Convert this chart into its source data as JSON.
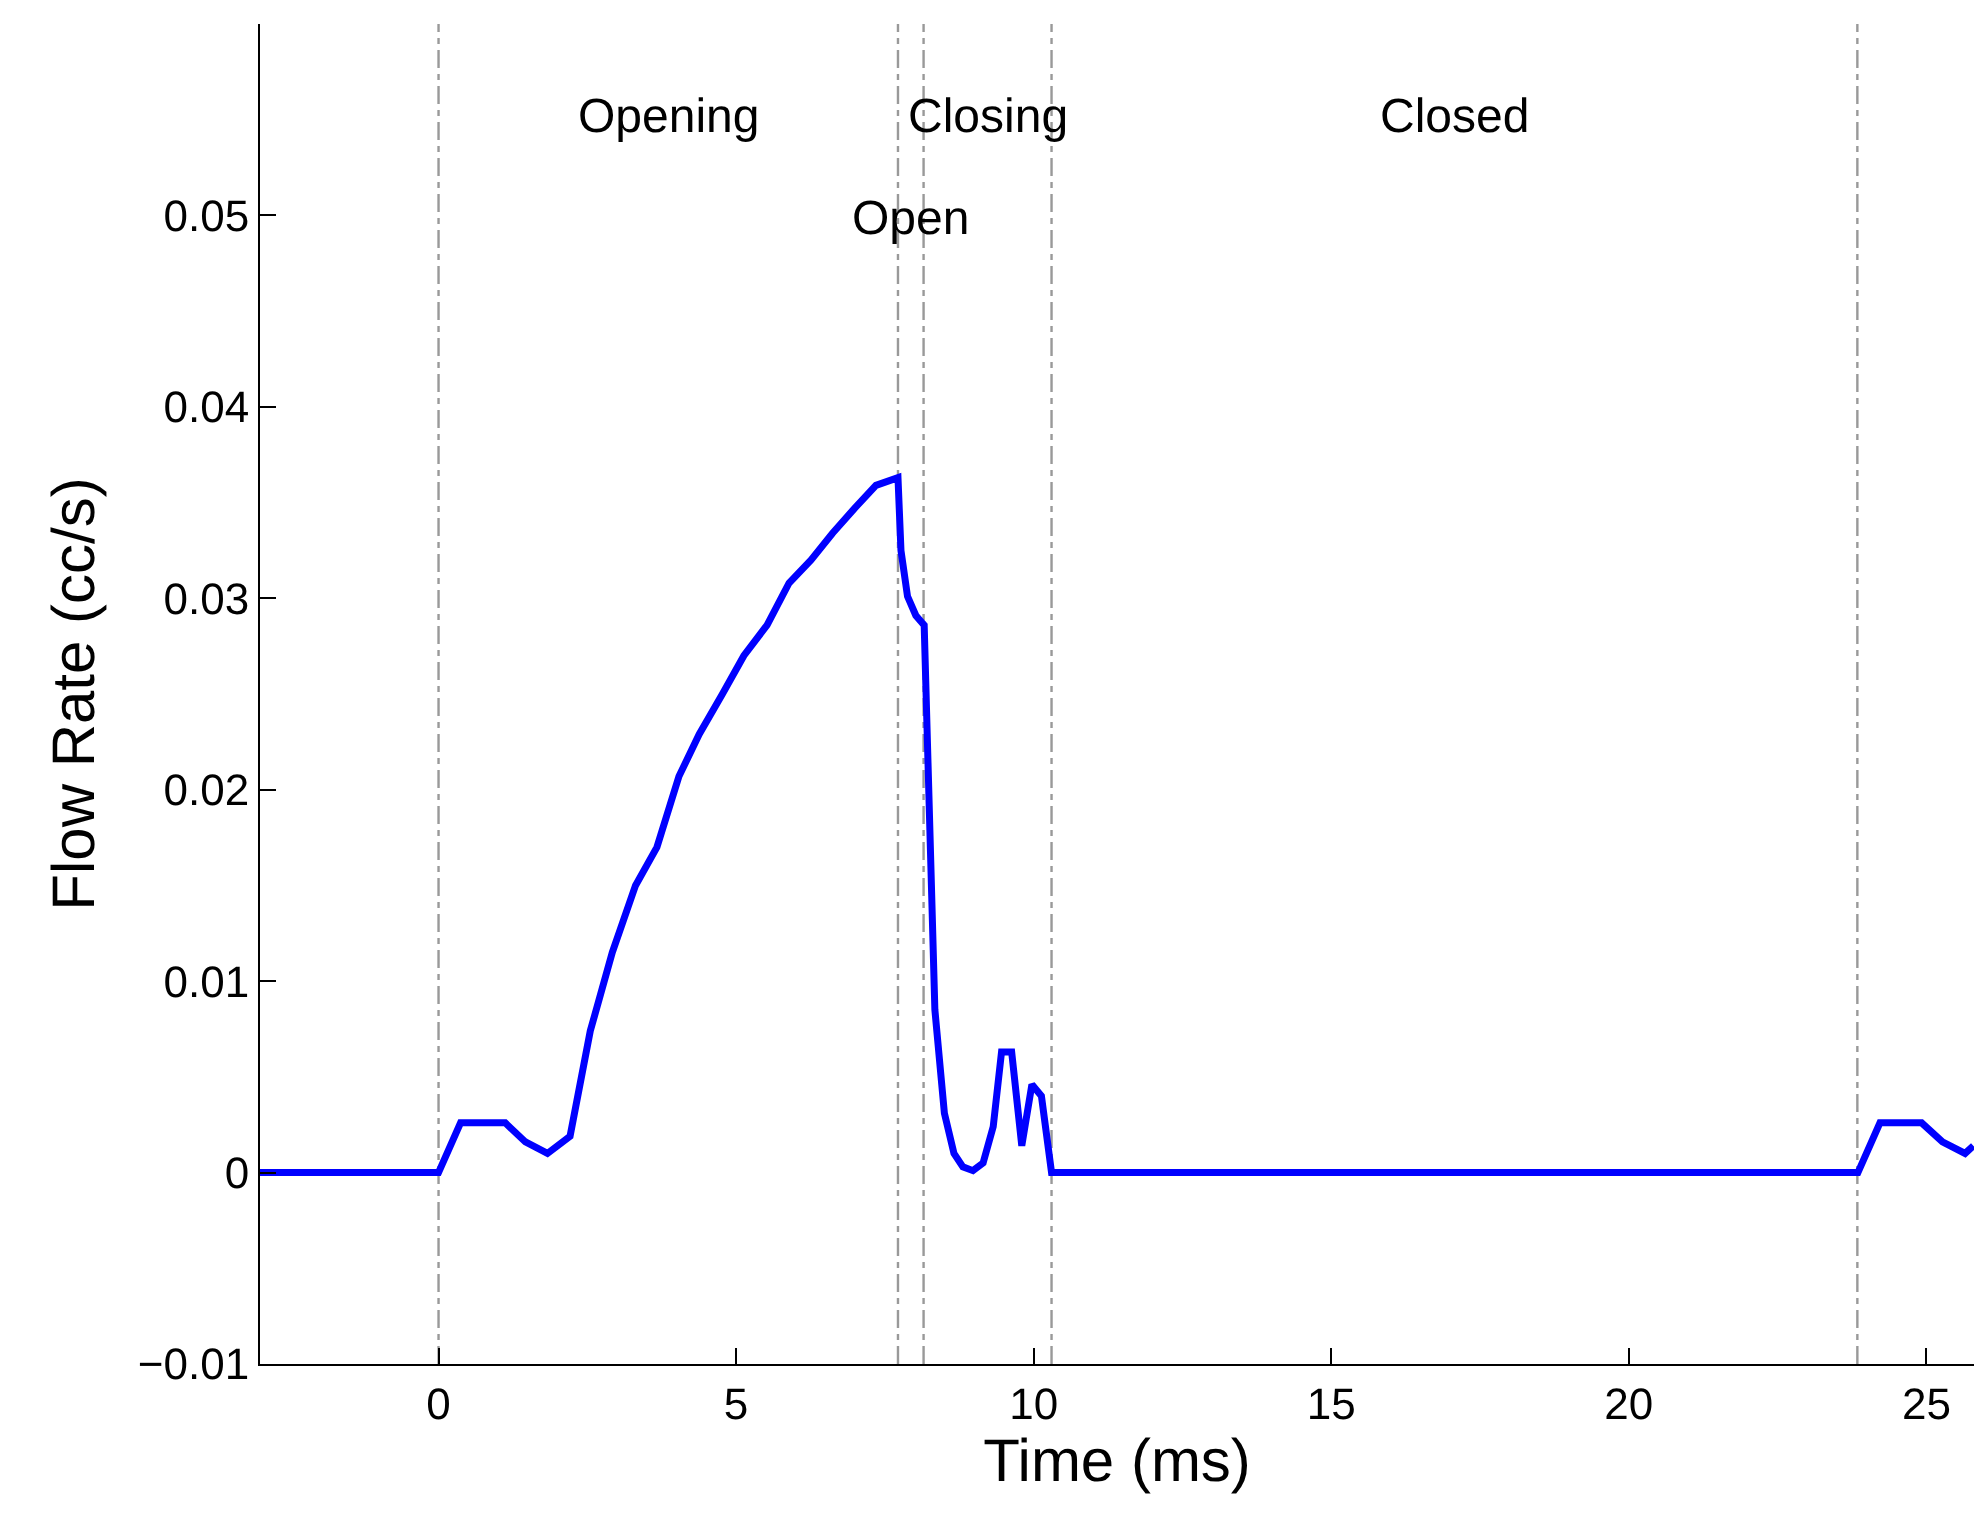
{
  "chart_data": {
    "type": "line",
    "xlabel": "Time (ms)",
    "ylabel": "Flow Rate (cc/s)",
    "x": [
      -3,
      0,
      0.37,
      1.12,
      1.46,
      1.83,
      2.21,
      2.55,
      2.92,
      3.31,
      3.67,
      4.04,
      4.38,
      4.77,
      5.13,
      5.52,
      5.89,
      6.26,
      6.62,
      6.99,
      7.35,
      7.72,
      7.77,
      7.88,
      8.02,
      8.16,
      8.34,
      8.5,
      8.66,
      8.81,
      8.98,
      9.15,
      9.32,
      9.46,
      9.63,
      9.8,
      9.97,
      10.13,
      10.3,
      23.85,
      24.22,
      24.92,
      25.27,
      25.65,
      25.79
    ],
    "series": [
      {
        "color": "#0000ff",
        "values": [
          0,
          0,
          0.0026,
          0.0026,
          0.0016,
          0.001,
          0.0019,
          0.0074,
          0.0115,
          0.015,
          0.017,
          0.0207,
          0.0229,
          0.025,
          0.027,
          0.0286,
          0.0308,
          0.032,
          0.0334,
          0.0347,
          0.0359,
          0.0363,
          0.0325,
          0.0301,
          0.0291,
          0.0286,
          0.0085,
          0.0031,
          0.001,
          0.0003,
          0.0001,
          0.0005,
          0.0024,
          0.0063,
          0.0063,
          0.0014,
          0.0046,
          0.004,
          0,
          0,
          0.0026,
          0.0026,
          0.0016,
          0.001,
          0.0014
        ]
      }
    ],
    "xlim": [
      -3,
      25.8
    ],
    "xticks": [
      0,
      5,
      10,
      15,
      20,
      25
    ],
    "ylim": [
      -0.01,
      0.06
    ],
    "yticks": [
      {
        "value": -0.01,
        "label": "−0.01"
      },
      0,
      0.01,
      0.02,
      0.03,
      0.04,
      0.05
    ],
    "ref_lines": [
      {
        "axis": "x",
        "value": 0,
        "color": "#999999",
        "line_style": "dashdot"
      },
      {
        "axis": "x",
        "value": 7.72,
        "color": "#999999",
        "line_style": "dashdot"
      },
      {
        "axis": "x",
        "value": 8.15,
        "color": "#999999",
        "line_style": "dashdot"
      },
      {
        "axis": "x",
        "value": 10.3,
        "color": "#999999",
        "line_style": "dashdot"
      },
      {
        "axis": "x",
        "value": 23.84,
        "color": "#999999",
        "line_style": "dashdot"
      }
    ],
    "annotations": [
      "Opening",
      "Open",
      "Closing",
      "Closed"
    ],
    "grid": false,
    "marker": "none",
    "line_style": "solid"
  }
}
